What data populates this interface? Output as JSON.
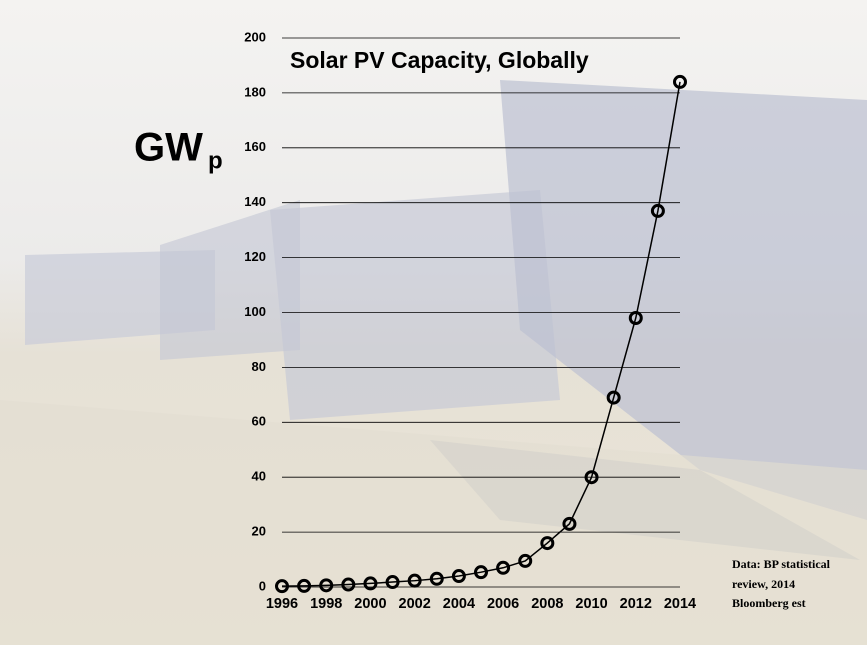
{
  "chart_data": {
    "type": "line",
    "title": "Solar PV Capacity, Globally",
    "ylabel": "GW",
    "ylabel_subscript": "p",
    "source_note": [
      "Data: BP statistical",
      "review, 2014",
      "Bloomberg est"
    ],
    "x": [
      1996,
      1997,
      1998,
      1999,
      2000,
      2001,
      2002,
      2003,
      2004,
      2005,
      2006,
      2007,
      2008,
      2009,
      2010,
      2011,
      2012,
      2013,
      2014
    ],
    "values": [
      0.3,
      0.4,
      0.6,
      0.9,
      1.3,
      1.8,
      2.3,
      3.0,
      4.0,
      5.4,
      7.0,
      9.5,
      16,
      23,
      40,
      69,
      98,
      137,
      184
    ],
    "color": "#000000",
    "xlim": [
      1996,
      2014
    ],
    "xticks": [
      1996,
      1998,
      2000,
      2002,
      2004,
      2006,
      2008,
      2010,
      2012,
      2014
    ],
    "ylim": [
      0,
      200
    ],
    "yticks": [
      0,
      20,
      40,
      60,
      80,
      100,
      120,
      140,
      160,
      180,
      200
    ],
    "grid": true
  }
}
